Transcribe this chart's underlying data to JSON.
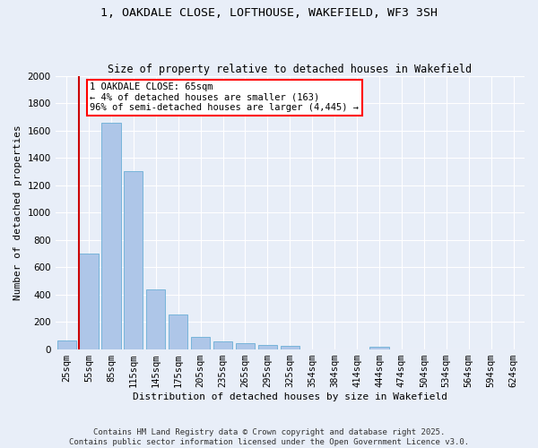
{
  "title_line1": "1, OAKDALE CLOSE, LOFTHOUSE, WAKEFIELD, WF3 3SH",
  "title_line2": "Size of property relative to detached houses in Wakefield",
  "xlabel": "Distribution of detached houses by size in Wakefield",
  "ylabel": "Number of detached properties",
  "categories": [
    "25sqm",
    "55sqm",
    "85sqm",
    "115sqm",
    "145sqm",
    "175sqm",
    "205sqm",
    "235sqm",
    "265sqm",
    "295sqm",
    "325sqm",
    "354sqm",
    "384sqm",
    "414sqm",
    "444sqm",
    "474sqm",
    "504sqm",
    "534sqm",
    "564sqm",
    "594sqm",
    "624sqm"
  ],
  "values": [
    65,
    700,
    1660,
    1305,
    440,
    255,
    90,
    55,
    40,
    28,
    22,
    0,
    0,
    0,
    15,
    0,
    0,
    0,
    0,
    0,
    0
  ],
  "bar_color": "#aec6e8",
  "bar_edge_color": "#6aaed6",
  "annotation_box_text": "1 OAKDALE CLOSE: 65sqm\n← 4% of detached houses are smaller (163)\n96% of semi-detached houses are larger (4,445) →",
  "vline_color": "#cc0000",
  "ylim": [
    0,
    2000
  ],
  "yticks": [
    0,
    200,
    400,
    600,
    800,
    1000,
    1200,
    1400,
    1600,
    1800,
    2000
  ],
  "background_color": "#e8eef8",
  "grid_color": "#ffffff",
  "footer_line1": "Contains HM Land Registry data © Crown copyright and database right 2025.",
  "footer_line2": "Contains public sector information licensed under the Open Government Licence v3.0.",
  "title_fontsize": 9.5,
  "subtitle_fontsize": 8.5,
  "axis_label_fontsize": 8,
  "tick_fontsize": 7.5,
  "annotation_fontsize": 7.5,
  "footer_fontsize": 6.5
}
